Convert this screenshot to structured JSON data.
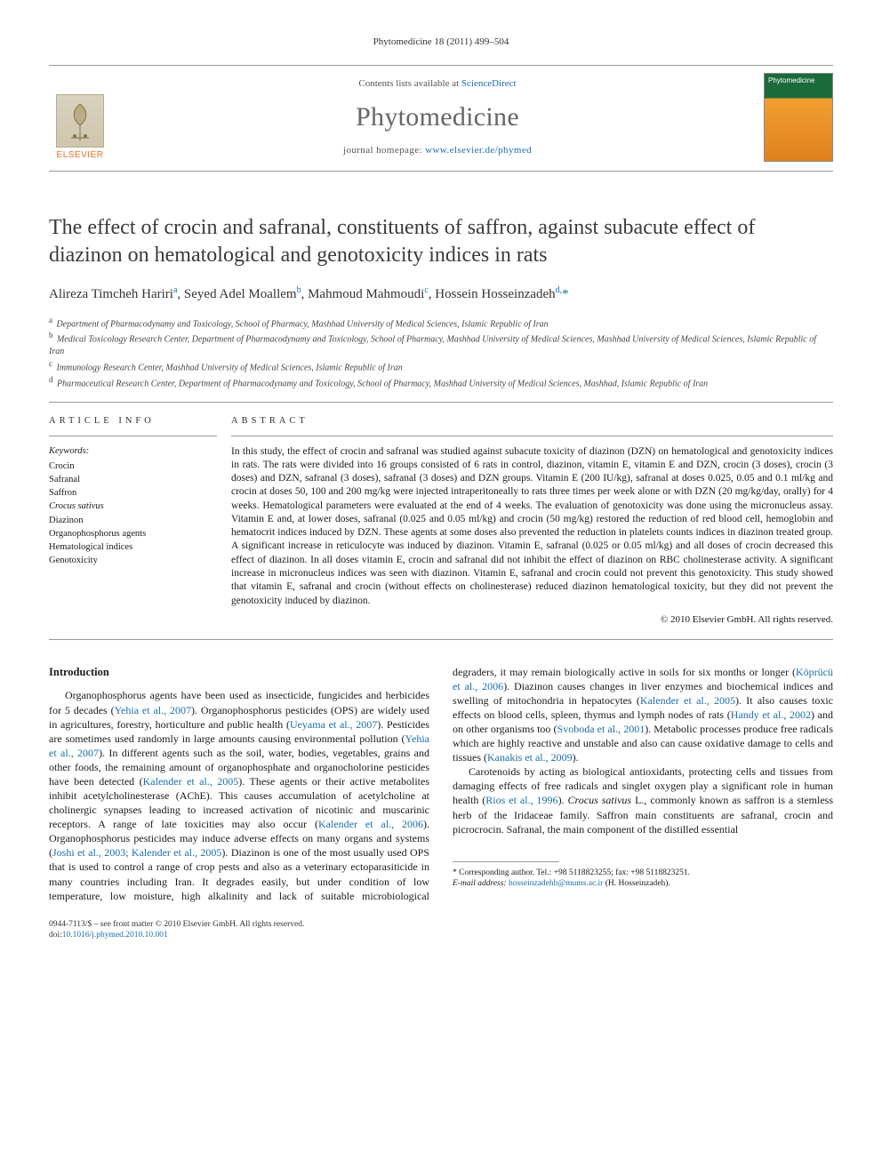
{
  "running_head": {
    "journal": "Phytomedicine",
    "citation": "18 (2011) 499–504"
  },
  "masthead": {
    "publisher_logo_text": "ELSEVIER",
    "contents_line_prefix": "Contents lists available at ",
    "contents_link_text": "ScienceDirect",
    "journal_name": "Phytomedicine",
    "homepage_prefix": "journal homepage: ",
    "homepage_link": "www.elsevier.de/phymed",
    "cover_label": "Phytomedicine"
  },
  "title": "The effect of crocin and safranal, constituents of saffron, against subacute effect of diazinon on hematological and genotoxicity indices in rats",
  "authors_html": "Alireza Timcheh Hariri<sup>a</sup>, Seyed Adel Moallem<sup>b</sup>, Mahmoud Mahmoudi<sup>c</sup>, Hossein Hosseinzadeh<sup>d,</sup><span class='corr'>*</span>",
  "affiliations": [
    {
      "sup": "a",
      "text": "Department of Pharmacodynamy and Toxicology, School of Pharmacy, Mashhad University of Medical Sciences, Islamic Republic of Iran"
    },
    {
      "sup": "b",
      "text": "Medical Toxicology Research Center, Department of Pharmacodynamy and Toxicology, School of Pharmacy, Mashhad University of Medical Sciences, Mashhad University of Medical Sciences, Islamic Republic of Iran"
    },
    {
      "sup": "c",
      "text": "Immunology Research Center, Mashhad University of Medical Sciences, Islamic Republic of Iran"
    },
    {
      "sup": "d",
      "text": "Pharmaceutical Research Center, Department of Pharmacodynamy and Toxicology, School of Pharmacy, Mashhad University of Medical Sciences, Mashhad, Islamic Republic of Iran"
    }
  ],
  "article_info": {
    "heading": "article info",
    "keywords_label": "Keywords:",
    "keywords": [
      {
        "text": "Crocin",
        "italic": false
      },
      {
        "text": "Safranal",
        "italic": false
      },
      {
        "text": "Saffron",
        "italic": false
      },
      {
        "text": "Crocus sativus",
        "italic": true
      },
      {
        "text": "Diazinon",
        "italic": false
      },
      {
        "text": "Organophosphorus agents",
        "italic": false
      },
      {
        "text": "Hematological indices",
        "italic": false
      },
      {
        "text": "Genotoxicity",
        "italic": false
      }
    ]
  },
  "abstract": {
    "heading": "abstract",
    "text": "In this study, the effect of crocin and safranal was studied against subacute toxicity of diazinon (DZN) on hematological and genotoxicity indices in rats. The rats were divided into 16 groups consisted of 6 rats in control, diazinon, vitamin E, vitamin E and DZN, crocin (3 doses), crocin (3 doses) and DZN, safranal (3 doses), safranal (3 doses) and DZN groups. Vitamin E (200 IU/kg), safranal at doses 0.025, 0.05 and 0.1 ml/kg and crocin at doses 50, 100 and 200 mg/kg were injected intraperitoneally to rats three times per week alone or with DZN (20 mg/kg/day, orally) for 4 weeks. Hematological parameters were evaluated at the end of 4 weeks. The evaluation of genotoxicity was done using the micronucleus assay. Vitamin E and, at lower doses, safranal (0.025 and 0.05 ml/kg) and crocin (50 mg/kg) restored the reduction of red blood cell, hemoglobin and hematocrit indices induced by DZN. These agents at some doses also prevented the reduction in platelets counts indices in diazinon treated group. A significant increase in reticulocyte was induced by diazinon. Vitamin E, safranal (0.025 or 0.05 ml/kg) and all doses of crocin decreased this effect of diazinon. In all doses vitamin E, crocin and safranal did not inhibit the effect of diazinon on RBC cholinesterase activity. A significant increase in micronucleus indices was seen with diazinon. Vitamin E, safranal and crocin could not prevent this genotoxicity. This study showed that vitamin E, safranal and crocin (without effects on cholinesterase) reduced diazinon hematological toxicity, but they did not prevent the genotoxicity induced by diazinon.",
    "copyright": "© 2010 Elsevier GmbH. All rights reserved."
  },
  "body": {
    "heading": "Introduction",
    "para1_pre": "Organophosphorus agents have been used as insecticide, fungicides and herbicides for 5 decades (",
    "ref1": "Yehia et al., 2007",
    "para1_mid1": "). Organophosphorus pesticides (OPS) are widely used in agricultures, forestry, horticulture and public health (",
    "ref2": "Ueyama et al., 2007",
    "para1_mid2": "). Pesticides are sometimes used randomly in large amounts causing environmental pollution (",
    "ref3": "Yehia et al., 2007",
    "para1_mid3": "). In different agents such as the soil, water, bodies, vegetables, grains and other foods, the remaining amount of organophosphate and organocholorine pesticides have been detected (",
    "ref4": "Kalender et al., 2005",
    "para1_mid4": "). These agents or their active metabolites inhibit acetylcholinesterase (AChE). This causes accumulation of acetylcholine at cholinergic synapses leading to increased activation of nicotinic and muscarinic receptors. A range of late toxicities may also occur (",
    "ref5": "Kalender et al., 2006",
    "para1_mid5": "). Organophosphorus pesticides may induce adverse effects on many organs and systems (",
    "ref6": "Joshi et al., 2003; Kalender et al., 2005",
    "para1_mid6": "). Diazinon is one of the most usually used OPS that is used to control a range of crop pests and also as a veterinary ectoparasiticide in many countries including Iran. It degrades easily, but under condition of low temperature, low moisture, high alkalinity and lack of suitable microbiological degraders, it may remain biologically active in soils for six months or longer (",
    "ref7": "Köprücü et al., 2006",
    "para1_mid7": "). Diazinon causes changes in liver enzymes and biochemical indices and swelling of mitochondria in hepatocytes (",
    "ref8": "Kalender et al., 2005",
    "para1_mid8": "). It also causes toxic effects on blood cells, spleen, thymus and lymph nodes of rats (",
    "ref9": "Handy et al., 2002",
    "para1_mid9": ") and on other organisms too (",
    "ref10": "Svoboda et al., 2001",
    "para1_mid10": "). Metabolic processes produce free radicals which are highly reactive and unstable and also can cause oxidative damage to cells and tissues (",
    "ref11": "Kanakis et al., 2009",
    "para1_end": ").",
    "para2_pre": "Carotenoids by acting as biological antioxidants, protecting cells and tissues from damaging effects of free radicals and singlet oxygen play a significant role in human health (",
    "ref12": "Rios et al., 1996",
    "para2_mid1": "). ",
    "sci1": "Crocus sativus",
    "para2_mid2": " L., commonly known as saffron is a stemless herb of the Iridaceae family. Saffron main constituents are safranal, crocin and picrocrocin. Safranal, the main component of the distilled essential"
  },
  "footnotes": {
    "corr_prefix": "* Corresponding author. Tel.: ",
    "tel": "+98 5118823255",
    "fax_prefix": "; fax: ",
    "fax": "+98 5118823251.",
    "email_label": "E-mail address: ",
    "email": "hosseinzadehh@mums.ac.ir",
    "email_owner": " (H. Hosseinzadeh)."
  },
  "footer": {
    "issn_line": "0944-7113/$ – see front matter © 2010 Elsevier GmbH. All rights reserved.",
    "doi_prefix": "doi:",
    "doi": "10.1016/j.phymed.2010.10.001"
  }
}
